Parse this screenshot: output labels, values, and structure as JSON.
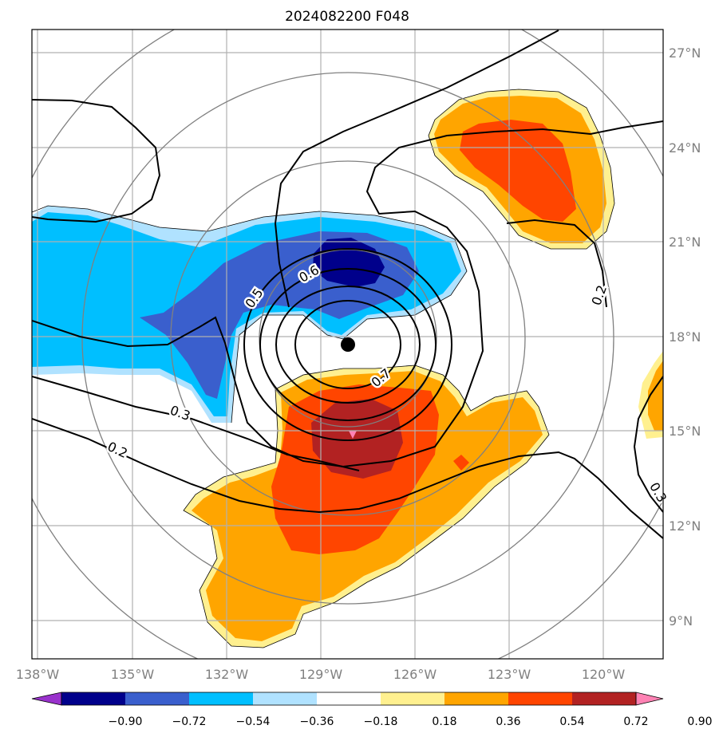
{
  "title": "2024082200 F048",
  "map": {
    "lon_ticks": [
      "138°W",
      "135°W",
      "132°W",
      "129°W",
      "126°W",
      "123°W",
      "120°W"
    ],
    "lat_ticks": [
      "27°N",
      "24°N",
      "21°N",
      "18°N",
      "15°N",
      "12°N",
      "9°N"
    ],
    "storm_center": {
      "lon": -128.2,
      "lat": 17.7
    },
    "range_rings": "concentric distance circles around storm center",
    "contour_labels": [
      "0.5",
      "0.6",
      "0.7",
      "0.3",
      "0.2",
      "0.2",
      "0.3"
    ]
  },
  "colorbar": {
    "levels": [
      "−0.90",
      "−0.72",
      "−0.54",
      "−0.36",
      "−0.18",
      "0.18",
      "0.36",
      "0.54",
      "0.72",
      "0.90"
    ],
    "colors": [
      "#9932cc",
      "#00008b",
      "#3a5fcd",
      "#00bfff",
      "#b0e2ff",
      "#ffffff",
      "#fff08f",
      "#ffa500",
      "#ff4500",
      "#b22222",
      "#ff82b4"
    ]
  }
}
